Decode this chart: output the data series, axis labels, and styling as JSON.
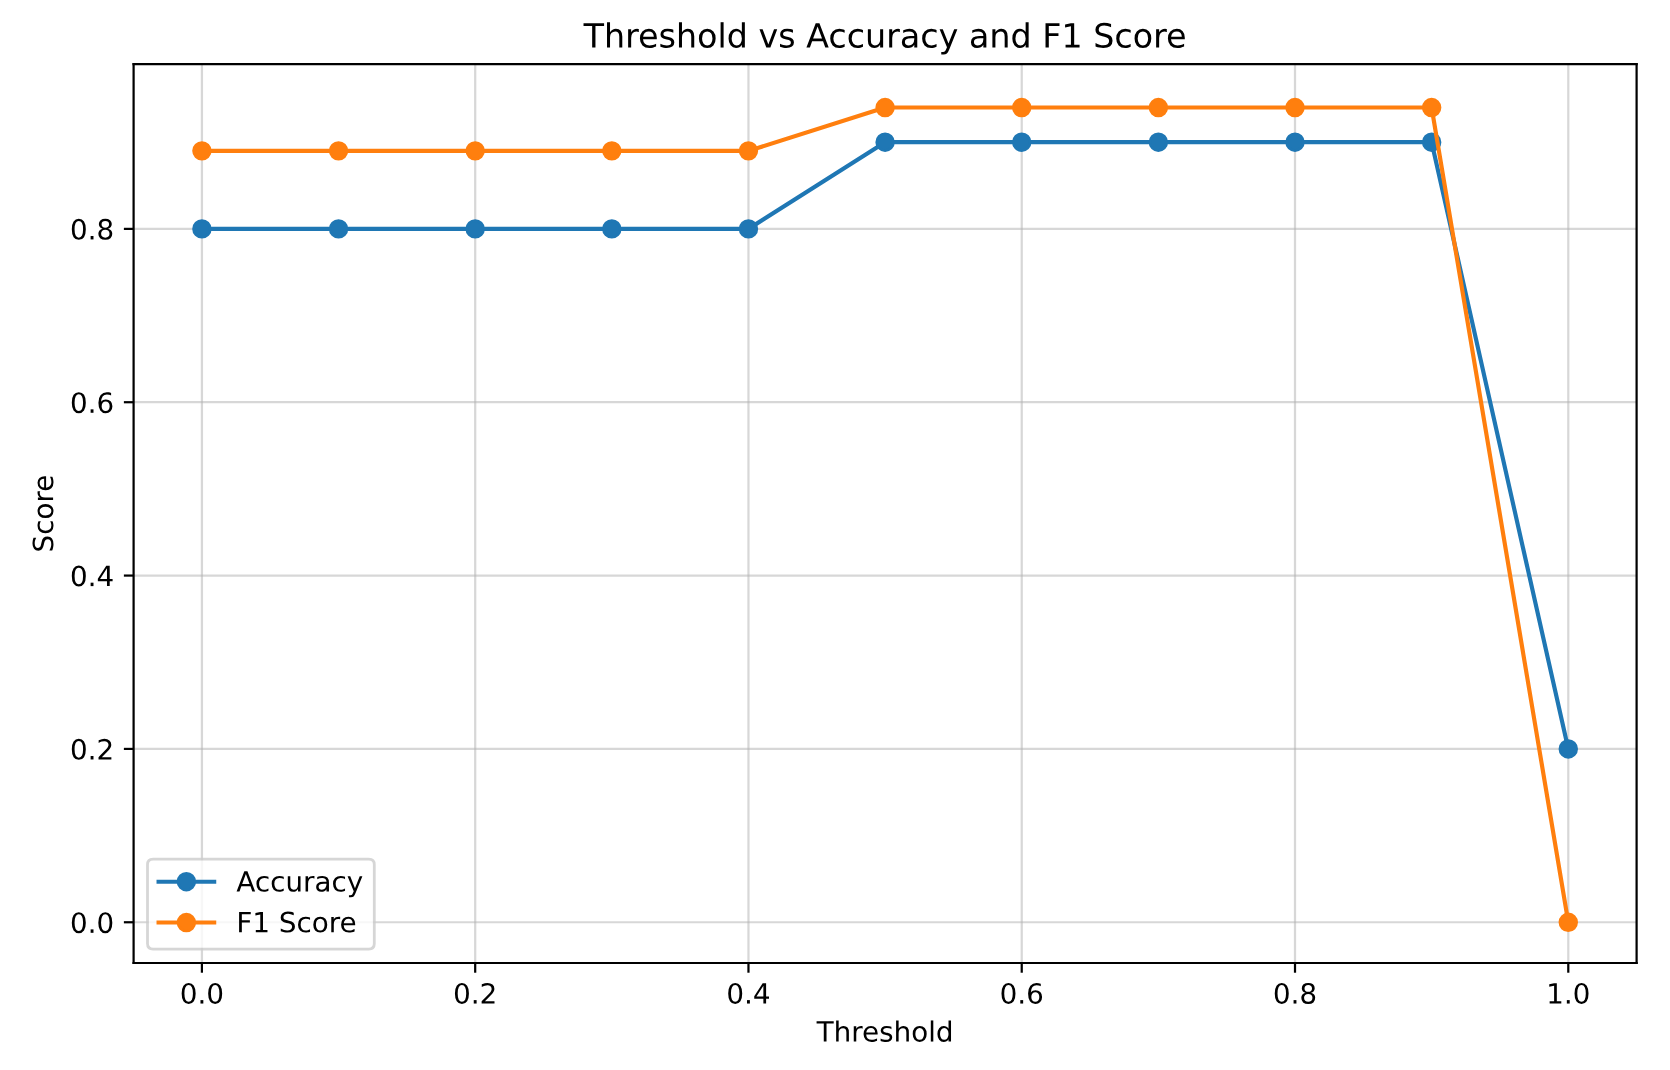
{
  "chart_data": {
    "type": "line",
    "title": "Threshold vs Accuracy and F1 Score",
    "xlabel": "Threshold",
    "ylabel": "Score",
    "x": [
      0.0,
      0.1,
      0.2,
      0.3,
      0.4,
      0.5,
      0.6,
      0.7,
      0.8,
      0.9,
      1.0
    ],
    "series": [
      {
        "name": "Accuracy",
        "color": "#1f77b4",
        "values": [
          0.8,
          0.8,
          0.8,
          0.8,
          0.8,
          0.9,
          0.9,
          0.9,
          0.9,
          0.9,
          0.2
        ]
      },
      {
        "name": "F1 Score",
        "color": "#ff7f0e",
        "values": [
          0.89,
          0.89,
          0.89,
          0.89,
          0.89,
          0.94,
          0.94,
          0.94,
          0.94,
          0.94,
          0.0
        ]
      }
    ],
    "xlim": [
      -0.05,
      1.05
    ],
    "ylim": [
      -0.047,
      0.99
    ],
    "xticks": [
      {
        "value": 0.0,
        "label": "0.0"
      },
      0.2,
      0.4,
      0.6,
      0.8,
      {
        "value": 1.0,
        "label": "1.0"
      }
    ],
    "yticks": [
      {
        "value": 0.0,
        "label": "0.0"
      },
      0.2,
      0.4,
      0.6,
      0.8
    ],
    "grid": true,
    "legend": "lower left",
    "marker": "circle",
    "line_style": "solid"
  }
}
